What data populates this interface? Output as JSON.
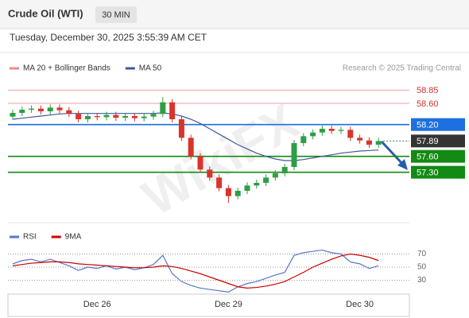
{
  "header": {
    "title": "Crude Oil (WTI)",
    "timeframe": "30 MIN",
    "datetime": "Tuesday, December 30, 2025 3:55:39 AM CET"
  },
  "chart_data": {
    "type": "candlestick",
    "legend": [
      {
        "name": "MA 20 + Bollinger Bands",
        "color": "#f08a8a"
      },
      {
        "name": "MA 50",
        "color": "#3d5a99"
      }
    ],
    "credit": "Research © 2025 Trading Central",
    "watermark": "WikiFX",
    "categories": [
      null,
      null,
      null,
      null,
      null,
      null,
      null,
      null,
      null,
      "Dec 26",
      null,
      null,
      null,
      null,
      null,
      null,
      null,
      null,
      null,
      null,
      null,
      null,
      null,
      "Dec 29",
      null,
      null,
      null,
      null,
      null,
      null,
      null,
      null,
      null,
      null,
      null,
      null,
      null,
      "Dec 30",
      null,
      null
    ],
    "open": [
      58.35,
      58.42,
      58.48,
      58.5,
      58.45,
      58.52,
      58.47,
      58.4,
      58.3,
      58.36,
      58.34,
      58.38,
      58.33,
      58.36,
      58.32,
      58.35,
      58.4,
      58.62,
      58.3,
      57.95,
      57.6,
      57.35,
      57.2,
      57.0,
      56.85,
      56.95,
      57.05,
      57.1,
      57.2,
      57.28,
      57.4,
      57.85,
      57.98,
      58.05,
      58.12,
      58.08,
      58.1,
      57.95,
      57.9,
      57.82
    ],
    "high": [
      58.48,
      58.54,
      58.56,
      58.56,
      58.58,
      58.58,
      58.53,
      58.46,
      58.42,
      58.42,
      58.44,
      58.44,
      58.42,
      58.42,
      58.41,
      58.46,
      58.72,
      58.68,
      58.36,
      58.01,
      57.66,
      57.41,
      57.26,
      57.06,
      57.01,
      57.11,
      57.16,
      57.26,
      57.34,
      57.46,
      57.91,
      58.04,
      58.11,
      58.18,
      58.18,
      58.16,
      58.16,
      58.01,
      57.96,
      57.95
    ],
    "low": [
      58.29,
      58.36,
      58.42,
      58.39,
      58.39,
      58.41,
      58.34,
      58.24,
      58.24,
      58.28,
      58.28,
      58.27,
      58.27,
      58.26,
      58.26,
      58.29,
      58.34,
      58.24,
      57.89,
      57.54,
      57.29,
      57.14,
      56.94,
      56.72,
      56.79,
      56.89,
      56.99,
      57.04,
      57.14,
      57.22,
      57.34,
      57.79,
      57.92,
      57.99,
      58.02,
      58.02,
      57.89,
      57.84,
      57.76,
      57.76
    ],
    "close": [
      58.42,
      58.48,
      58.5,
      58.45,
      58.52,
      58.47,
      58.4,
      58.3,
      58.36,
      58.34,
      58.38,
      58.33,
      58.36,
      58.32,
      58.35,
      58.4,
      58.62,
      58.3,
      57.95,
      57.6,
      57.35,
      57.2,
      57.0,
      56.85,
      56.95,
      57.05,
      57.1,
      57.2,
      57.28,
      57.4,
      57.85,
      57.98,
      58.05,
      58.12,
      58.08,
      58.1,
      57.95,
      57.9,
      57.82,
      57.89
    ],
    "ma50": [
      58.3,
      58.32,
      58.34,
      58.36,
      58.38,
      58.4,
      58.41,
      58.41,
      58.41,
      58.41,
      58.41,
      58.41,
      58.41,
      58.41,
      58.41,
      58.41,
      58.42,
      58.4,
      58.36,
      58.3,
      58.22,
      58.12,
      58.02,
      57.92,
      57.82,
      57.74,
      57.66,
      57.6,
      57.55,
      57.52,
      57.52,
      57.54,
      57.57,
      57.6,
      57.63,
      57.66,
      57.68,
      57.7,
      57.71,
      57.72
    ],
    "up_color": "#2e9e44",
    "down_color": "#d9342b",
    "ylim": [
      56.5,
      59.05
    ],
    "yticks": [
      58.85,
      {
        "value": 58.6,
        "label": "58.60"
      },
      {
        "value": 58.2,
        "label": "58.20"
      },
      57.89,
      {
        "value": 57.6,
        "label": "57.60"
      },
      {
        "value": 57.3,
        "label": "57.30"
      }
    ],
    "ytick_colors": [
      "#d32f2f",
      "#d32f2f",
      "#1e6fe0",
      "#333333",
      "#138a13",
      "#138a13"
    ],
    "ytick_boxed": [
      false,
      false,
      true,
      true,
      true,
      true
    ],
    "rsi": {
      "legend": [
        {
          "name": "RSI",
          "color": "#5577cc"
        },
        {
          "name": "9MA",
          "color": "#cc0000"
        }
      ],
      "rsi": [
        55,
        60,
        62,
        58,
        62,
        57,
        52,
        45,
        50,
        48,
        52,
        47,
        50,
        46,
        49,
        54,
        68,
        40,
        28,
        22,
        18,
        16,
        14,
        12,
        20,
        25,
        28,
        33,
        38,
        42,
        68,
        72,
        74,
        76,
        72,
        70,
        58,
        55,
        48,
        52
      ],
      "ma": [
        52,
        54,
        56,
        57,
        58,
        58,
        57,
        55,
        54,
        53,
        52,
        51,
        50,
        49,
        49,
        50,
        52,
        51,
        48,
        44,
        40,
        35,
        30,
        25,
        20,
        18,
        19,
        21,
        24,
        28,
        35,
        42,
        50,
        56,
        62,
        67,
        70,
        68,
        65,
        60
      ],
      "ylim": [
        10,
        90
      ],
      "yticks": [
        70,
        50,
        30
      ]
    }
  }
}
